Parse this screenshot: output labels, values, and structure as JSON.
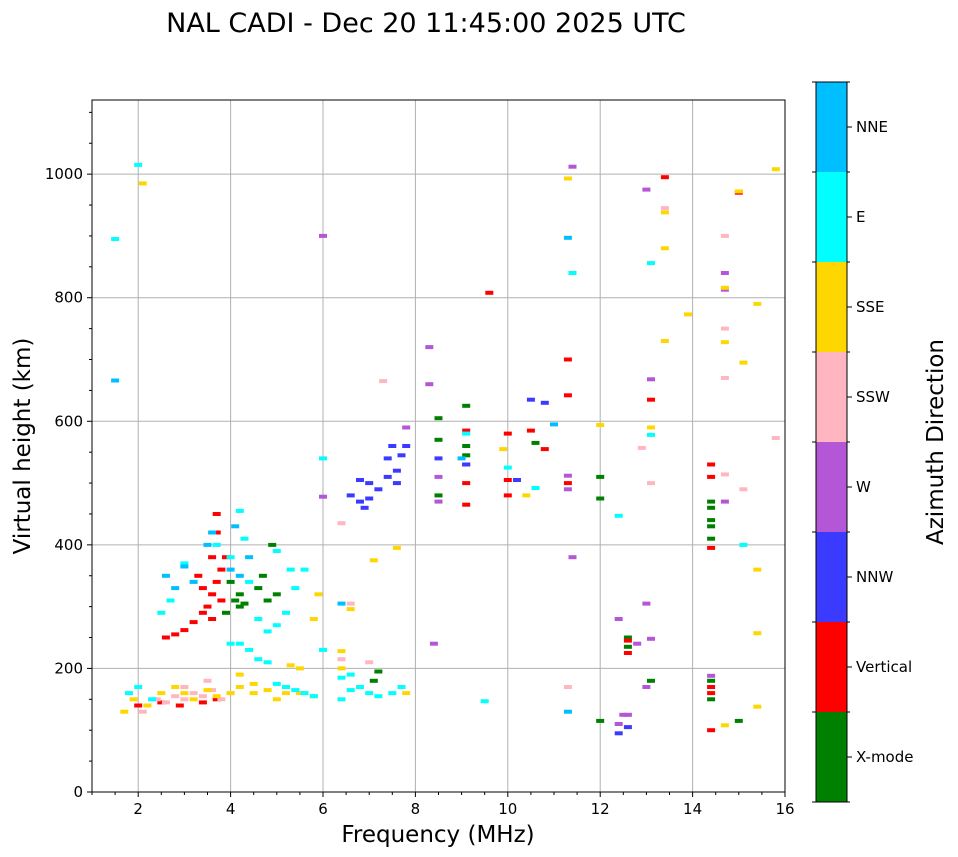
{
  "chart_data": {
    "type": "scatter",
    "title": "NAL CADI - Dec 20 11:45:00 2025 UTC",
    "xlabel": "Frequency (MHz)",
    "ylabel": "Virtual height (km)",
    "xlim": [
      1,
      16
    ],
    "ylim": [
      0,
      1120
    ],
    "x_ticks": [
      2,
      4,
      6,
      8,
      10,
      12,
      14,
      16
    ],
    "y_ticks": [
      0,
      200,
      400,
      600,
      800,
      1000
    ],
    "grid": true,
    "colorbar": {
      "label": "Azimuth Direction",
      "categories": [
        {
          "name": "X-mode",
          "color": "#008000"
        },
        {
          "name": "Vertical",
          "color": "#ff0000"
        },
        {
          "name": "NNW",
          "color": "#3b3bff"
        },
        {
          "name": "W",
          "color": "#b357d6"
        },
        {
          "name": "SSW",
          "color": "#ffb6c1"
        },
        {
          "name": "SSE",
          "color": "#ffd700"
        },
        {
          "name": "E",
          "color": "#00ffff"
        },
        {
          "name": "NNE",
          "color": "#00bfff"
        }
      ]
    },
    "series": [
      {
        "name": "X-mode",
        "points": [
          [
            4.1,
            310
          ],
          [
            4.2,
            300
          ],
          [
            4.3,
            305
          ],
          [
            4.2,
            320
          ],
          [
            4.0,
            340
          ],
          [
            3.9,
            290
          ],
          [
            4.6,
            330
          ],
          [
            4.7,
            350
          ],
          [
            4.8,
            310
          ],
          [
            5.0,
            320
          ],
          [
            4.9,
            400
          ],
          [
            7.1,
            180
          ],
          [
            7.2,
            195
          ],
          [
            9.1,
            560
          ],
          [
            9.1,
            545
          ],
          [
            8.5,
            605
          ],
          [
            9.1,
            625
          ],
          [
            8.5,
            570
          ],
          [
            8.5,
            480
          ],
          [
            10.6,
            565
          ],
          [
            12.6,
            250
          ],
          [
            12.6,
            235
          ],
          [
            12.0,
            510
          ],
          [
            12.0,
            475
          ],
          [
            14.4,
            470
          ],
          [
            14.4,
            440
          ],
          [
            14.4,
            410
          ],
          [
            14.4,
            460
          ],
          [
            14.4,
            430
          ],
          [
            14.4,
            150
          ],
          [
            14.4,
            180
          ],
          [
            12.0,
            115
          ],
          [
            15.0,
            115
          ],
          [
            13.1,
            180
          ]
        ]
      },
      {
        "name": "Vertical",
        "points": [
          [
            2.6,
            250
          ],
          [
            2.8,
            255
          ],
          [
            3.0,
            262
          ],
          [
            3.2,
            275
          ],
          [
            3.4,
            290
          ],
          [
            3.5,
            300
          ],
          [
            3.6,
            320
          ],
          [
            3.7,
            340
          ],
          [
            3.8,
            360
          ],
          [
            3.9,
            380
          ],
          [
            3.4,
            330
          ],
          [
            3.6,
            380
          ],
          [
            3.7,
            420
          ],
          [
            3.7,
            450
          ],
          [
            3.3,
            350
          ],
          [
            2.0,
            140
          ],
          [
            2.5,
            145
          ],
          [
            2.9,
            140
          ],
          [
            3.4,
            145
          ],
          [
            3.7,
            150
          ],
          [
            3.6,
            280
          ],
          [
            3.8,
            310
          ],
          [
            9.1,
            500
          ],
          [
            9.1,
            465
          ],
          [
            9.1,
            530
          ],
          [
            9.1,
            585
          ],
          [
            9.6,
            808
          ],
          [
            10.0,
            580
          ],
          [
            10.0,
            505
          ],
          [
            10.0,
            480
          ],
          [
            10.5,
            585
          ],
          [
            10.8,
            555
          ],
          [
            11.3,
            700
          ],
          [
            11.3,
            642
          ],
          [
            11.3,
            500
          ],
          [
            13.1,
            635
          ],
          [
            13.4,
            995
          ],
          [
            12.6,
            225
          ],
          [
            12.6,
            245
          ],
          [
            14.4,
            530
          ],
          [
            14.4,
            510
          ],
          [
            14.4,
            395
          ],
          [
            14.4,
            100
          ],
          [
            14.4,
            160
          ],
          [
            14.4,
            170
          ],
          [
            15.0,
            970
          ]
        ]
      },
      {
        "name": "NNW",
        "points": [
          [
            6.6,
            480
          ],
          [
            6.8,
            470
          ],
          [
            7.0,
            475
          ],
          [
            7.2,
            490
          ],
          [
            7.4,
            510
          ],
          [
            7.6,
            520
          ],
          [
            7.7,
            545
          ],
          [
            7.8,
            560
          ],
          [
            7.4,
            540
          ],
          [
            6.9,
            460
          ],
          [
            7.0,
            500
          ],
          [
            7.5,
            560
          ],
          [
            6.8,
            505
          ],
          [
            7.6,
            500
          ],
          [
            8.5,
            540
          ],
          [
            9.1,
            530
          ],
          [
            10.2,
            505
          ],
          [
            10.5,
            635
          ],
          [
            10.8,
            630
          ],
          [
            12.4,
            95
          ],
          [
            12.6,
            105
          ]
        ]
      },
      {
        "name": "W",
        "points": [
          [
            6.0,
            478
          ],
          [
            6.0,
            900
          ],
          [
            7.8,
            590
          ],
          [
            8.3,
            720
          ],
          [
            8.3,
            660
          ],
          [
            8.4,
            240
          ],
          [
            8.5,
            510
          ],
          [
            8.5,
            470
          ],
          [
            11.4,
            1012
          ],
          [
            11.4,
            380
          ],
          [
            11.3,
            512
          ],
          [
            11.3,
            490
          ],
          [
            12.4,
            280
          ],
          [
            12.8,
            240
          ],
          [
            12.5,
            125
          ],
          [
            12.4,
            110
          ],
          [
            12.6,
            125
          ],
          [
            13.0,
            975
          ],
          [
            13.0,
            305
          ],
          [
            13.1,
            248
          ],
          [
            13.1,
            668
          ],
          [
            14.7,
            840
          ],
          [
            14.7,
            813
          ],
          [
            14.7,
            470
          ],
          [
            14.4,
            188
          ],
          [
            13.0,
            170
          ]
        ]
      },
      {
        "name": "SSW",
        "points": [
          [
            2.2,
            140
          ],
          [
            2.4,
            150
          ],
          [
            2.6,
            145
          ],
          [
            2.8,
            155
          ],
          [
            3.0,
            150
          ],
          [
            3.2,
            160
          ],
          [
            3.4,
            155
          ],
          [
            3.6,
            165
          ],
          [
            3.8,
            150
          ],
          [
            4.0,
            160
          ],
          [
            2.1,
            130
          ],
          [
            3.0,
            170
          ],
          [
            3.5,
            180
          ],
          [
            6.4,
            435
          ],
          [
            6.4,
            215
          ],
          [
            6.6,
            305
          ],
          [
            7.3,
            665
          ],
          [
            7.0,
            210
          ],
          [
            11.3,
            170
          ],
          [
            12.9,
            557
          ],
          [
            13.1,
            500
          ],
          [
            13.4,
            945
          ],
          [
            14.7,
            900
          ],
          [
            14.7,
            750
          ],
          [
            14.7,
            670
          ],
          [
            15.1,
            490
          ],
          [
            15.8,
            573
          ],
          [
            14.7,
            514
          ]
        ]
      },
      {
        "name": "SSE",
        "points": [
          [
            1.7,
            130
          ],
          [
            1.9,
            150
          ],
          [
            2.2,
            140
          ],
          [
            2.5,
            160
          ],
          [
            2.8,
            170
          ],
          [
            3.0,
            160
          ],
          [
            3.2,
            150
          ],
          [
            3.5,
            165
          ],
          [
            3.7,
            155
          ],
          [
            4.0,
            160
          ],
          [
            4.2,
            170
          ],
          [
            4.5,
            160
          ],
          [
            4.8,
            165
          ],
          [
            5.0,
            150
          ],
          [
            5.2,
            160
          ],
          [
            5.5,
            160
          ],
          [
            5.8,
            155
          ],
          [
            4.2,
            190
          ],
          [
            4.5,
            175
          ],
          [
            5.3,
            205
          ],
          [
            5.5,
            200
          ],
          [
            5.8,
            280
          ],
          [
            5.9,
            320
          ],
          [
            6.4,
            228
          ],
          [
            6.4,
            200
          ],
          [
            6.6,
            296
          ],
          [
            7.1,
            375
          ],
          [
            7.6,
            395
          ],
          [
            7.7,
            170
          ],
          [
            7.8,
            160
          ],
          [
            2.1,
            985
          ],
          [
            9.9,
            555
          ],
          [
            10.4,
            480
          ],
          [
            11.3,
            993
          ],
          [
            12.0,
            594
          ],
          [
            13.1,
            590
          ],
          [
            13.4,
            880
          ],
          [
            13.4,
            938
          ],
          [
            13.4,
            730
          ],
          [
            13.9,
            773
          ],
          [
            14.7,
            728
          ],
          [
            14.7,
            816
          ],
          [
            15.1,
            695
          ],
          [
            15.4,
            790
          ],
          [
            15.4,
            360
          ],
          [
            15.4,
            257
          ],
          [
            15.4,
            138
          ],
          [
            15.8,
            1008
          ],
          [
            15.0,
            972
          ],
          [
            14.7,
            108
          ]
        ]
      },
      {
        "name": "E",
        "points": [
          [
            1.8,
            160
          ],
          [
            2.0,
            170
          ],
          [
            2.3,
            150
          ],
          [
            4.0,
            240
          ],
          [
            4.2,
            240
          ],
          [
            4.4,
            230
          ],
          [
            4.6,
            215
          ],
          [
            4.8,
            210
          ],
          [
            5.0,
            175
          ],
          [
            5.2,
            170
          ],
          [
            5.4,
            165
          ],
          [
            5.6,
            160
          ],
          [
            5.8,
            155
          ],
          [
            6.0,
            230
          ],
          [
            5.0,
            270
          ],
          [
            5.2,
            290
          ],
          [
            5.4,
            330
          ],
          [
            5.3,
            360
          ],
          [
            4.4,
            340
          ],
          [
            4.6,
            280
          ],
          [
            4.8,
            260
          ],
          [
            5.6,
            360
          ],
          [
            6.4,
            150
          ],
          [
            6.6,
            165
          ],
          [
            6.8,
            170
          ],
          [
            7.0,
            160
          ],
          [
            7.2,
            155
          ],
          [
            7.5,
            160
          ],
          [
            7.7,
            170
          ],
          [
            6.4,
            185
          ],
          [
            6.6,
            190
          ],
          [
            4.2,
            455
          ],
          [
            4.3,
            410
          ],
          [
            4.0,
            380
          ],
          [
            3.7,
            400
          ],
          [
            3.0,
            370
          ],
          [
            2.7,
            310
          ],
          [
            2.5,
            290
          ],
          [
            5.0,
            390
          ],
          [
            6.0,
            540
          ],
          [
            9.1,
            580
          ],
          [
            9.5,
            147
          ],
          [
            10.0,
            525
          ],
          [
            10.6,
            492
          ],
          [
            11.4,
            840
          ],
          [
            12.4,
            447
          ],
          [
            13.1,
            856
          ],
          [
            13.1,
            578
          ],
          [
            15.1,
            400
          ],
          [
            2.0,
            1015
          ],
          [
            1.5,
            895
          ]
        ]
      },
      {
        "name": "NNE",
        "points": [
          [
            1.5,
            666
          ],
          [
            3.0,
            365
          ],
          [
            3.2,
            340
          ],
          [
            2.8,
            330
          ],
          [
            3.6,
            420
          ],
          [
            4.0,
            360
          ],
          [
            4.2,
            350
          ],
          [
            3.5,
            400
          ],
          [
            2.6,
            350
          ],
          [
            4.4,
            380
          ],
          [
            9.0,
            540
          ],
          [
            11.3,
            897
          ],
          [
            11.3,
            130
          ],
          [
            11.0,
            595
          ],
          [
            6.4,
            305
          ],
          [
            4.1,
            430
          ]
        ]
      }
    ]
  }
}
